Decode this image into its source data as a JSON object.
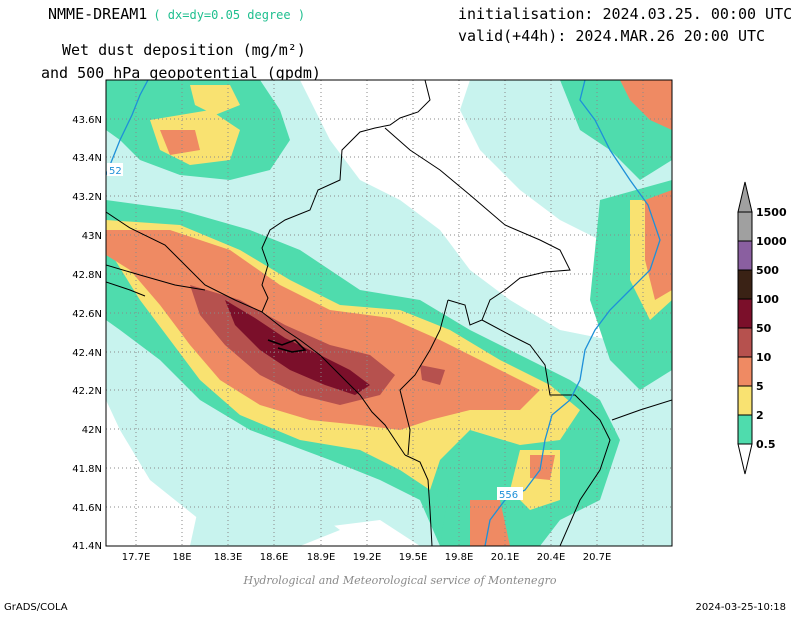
{
  "header": {
    "model": "NMME-DREAM1",
    "resolution": "( dx=dy=0.05 degree )",
    "init": "initialisation: 2024.03.25. 00:00 UTC",
    "valid": "valid(+44h): 2024.MAR.26 20:00 UTC",
    "field_line1": "Wet dust deposition (mg/m²)",
    "field_line2": "and 500 hPa geopotential (gpdm)"
  },
  "map": {
    "lon_ticks": [
      "17.7E",
      "18E",
      "18.3E",
      "18.6E",
      "18.9E",
      "19.2E",
      "19.5E",
      "19.8E",
      "20.1E",
      "20.4E",
      "20.7E"
    ],
    "lat_ticks": [
      "43.6N",
      "43.4N",
      "43.2N",
      "43N",
      "42.8N",
      "42.6N",
      "42.4N",
      "42.2N",
      "42N",
      "41.8N",
      "41.6N",
      "41.4N"
    ],
    "contour_labels": [
      {
        "text": "52",
        "color": "#1e90d8"
      },
      {
        "text": "556",
        "color": "#1e90d8"
      }
    ]
  },
  "colorbar": {
    "levels": [
      "0.5",
      "2",
      "5",
      "10",
      "50",
      "100",
      "500",
      "1000",
      "1500"
    ],
    "colors": [
      "#c8f3ee",
      "#4fdcad",
      "#f9e271",
      "#ef8a63",
      "#b6514e",
      "#7b0f2a",
      "#3a2215",
      "#8a5fa0",
      "#a0a0a0"
    ]
  },
  "credit": "Hydrological and Meteorological service of Montenegro",
  "footer": {
    "left": "GrADS/COLA",
    "right": "2024-03-25-10:18"
  }
}
